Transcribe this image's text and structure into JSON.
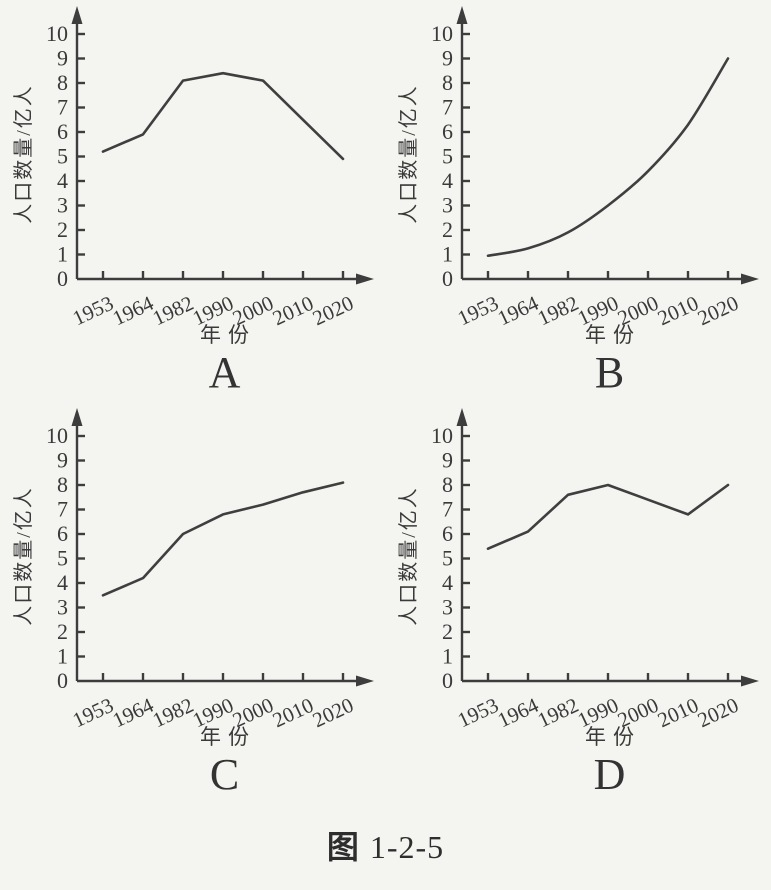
{
  "page": {
    "caption_prefix": "图",
    "caption_number": "1-2-5",
    "background": "#f4f4f1",
    "ink": "#3d3d3d"
  },
  "axes": {
    "ylabel": "人口数量/亿人",
    "xlabel": "年份",
    "yticks": [
      0,
      1,
      2,
      3,
      4,
      5,
      6,
      7,
      8,
      9,
      10
    ],
    "xticklabels": [
      "1953",
      "1964",
      "1982",
      "1990",
      "2000",
      "2010",
      "2020"
    ],
    "ylim": [
      0,
      10.8
    ]
  },
  "chart_data": [
    {
      "type": "line",
      "panel": "A",
      "title": "A",
      "categories": [
        "1953",
        "1964",
        "1982",
        "1990",
        "2000",
        "2010",
        "2020"
      ],
      "values": [
        5.2,
        5.9,
        8.1,
        8.4,
        8.1,
        6.5,
        4.9
      ],
      "smooth": false,
      "xlabel": "年份",
      "ylabel": "人口数量/亿人",
      "ylim": [
        0,
        10
      ],
      "grid": false,
      "legend": "none"
    },
    {
      "type": "line",
      "panel": "B",
      "title": "B",
      "categories": [
        "1953",
        "1964",
        "1982",
        "1990",
        "2000",
        "2010",
        "2020"
      ],
      "values": [
        0.95,
        1.25,
        1.9,
        3.0,
        4.4,
        6.3,
        9.0
      ],
      "smooth": true,
      "xlabel": "年份",
      "ylabel": "人口数量/亿人",
      "ylim": [
        0,
        10
      ],
      "grid": false,
      "legend": "none"
    },
    {
      "type": "line",
      "panel": "C",
      "title": "C",
      "categories": [
        "1953",
        "1964",
        "1982",
        "1990",
        "2000",
        "2010",
        "2020"
      ],
      "values": [
        3.5,
        4.2,
        6.0,
        6.8,
        7.2,
        7.7,
        8.1
      ],
      "smooth": false,
      "xlabel": "年份",
      "ylabel": "人口数量/亿人",
      "ylim": [
        0,
        10
      ],
      "grid": false,
      "legend": "none"
    },
    {
      "type": "line",
      "panel": "D",
      "title": "D",
      "categories": [
        "1953",
        "1964",
        "1982",
        "1990",
        "2000",
        "2010",
        "2020"
      ],
      "values": [
        5.4,
        6.1,
        7.6,
        8.0,
        7.4,
        6.8,
        8.0
      ],
      "smooth": false,
      "xlabel": "年份",
      "ylabel": "人口数量/亿人",
      "ylim": [
        0,
        10
      ],
      "grid": false,
      "legend": "none"
    }
  ]
}
